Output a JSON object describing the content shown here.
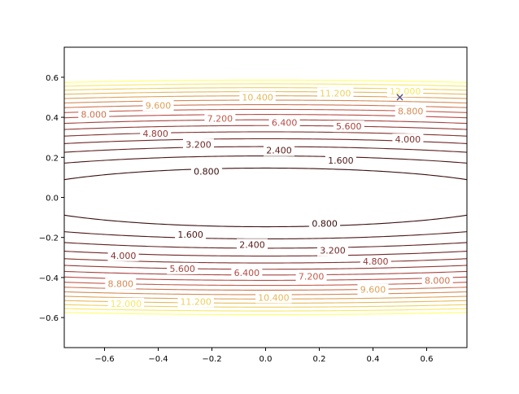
{
  "chart_data": {
    "type": "contour",
    "title": "",
    "xlabel": "",
    "ylabel": "",
    "xlim": [
      -0.75,
      0.75
    ],
    "ylim": [
      -0.75,
      0.75
    ],
    "x_ticks": [
      "−0.6",
      "−0.4",
      "−0.2",
      "0.0",
      "0.2",
      "0.4",
      "0.6"
    ],
    "y_ticks": [
      "−0.6",
      "−0.4",
      "−0.2",
      "0.0",
      "0.2",
      "0.4",
      "0.6"
    ],
    "levels": [
      0.8,
      1.6,
      2.4,
      3.2,
      4.0,
      4.8,
      5.6,
      6.4,
      7.2,
      8.0,
      8.8,
      9.6,
      10.4,
      11.2,
      12.0,
      12.8
    ],
    "level_labels": [
      {
        "text": "0.800",
        "x": -0.22,
        "y": 0.13
      },
      {
        "text": "1.600",
        "x": 0.28,
        "y": 0.185
      },
      {
        "text": "2.400",
        "x": 0.05,
        "y": 0.235
      },
      {
        "text": "3.200",
        "x": -0.25,
        "y": 0.265
      },
      {
        "text": "4.000",
        "x": 0.53,
        "y": 0.29
      },
      {
        "text": "4.800",
        "x": -0.41,
        "y": 0.32
      },
      {
        "text": "5.600",
        "x": 0.31,
        "y": 0.355
      },
      {
        "text": "6.400",
        "x": 0.07,
        "y": 0.375
      },
      {
        "text": "7.200",
        "x": -0.17,
        "y": 0.395
      },
      {
        "text": "8.000",
        "x": -0.64,
        "y": 0.415
      },
      {
        "text": "8.800",
        "x": 0.54,
        "y": 0.43
      },
      {
        "text": "9.600",
        "x": -0.4,
        "y": 0.46
      },
      {
        "text": "10.400",
        "x": -0.03,
        "y": 0.5
      },
      {
        "text": "11.200",
        "x": 0.26,
        "y": 0.52
      },
      {
        "text": "12.000",
        "x": 0.52,
        "y": 0.53
      },
      {
        "text": "0.800",
        "x": 0.22,
        "y": -0.13
      },
      {
        "text": "1.600",
        "x": -0.28,
        "y": -0.185
      },
      {
        "text": "2.400",
        "x": -0.05,
        "y": -0.235
      },
      {
        "text": "3.200",
        "x": 0.25,
        "y": -0.265
      },
      {
        "text": "4.000",
        "x": -0.53,
        "y": -0.29
      },
      {
        "text": "4.800",
        "x": 0.41,
        "y": -0.32
      },
      {
        "text": "5.600",
        "x": -0.31,
        "y": -0.355
      },
      {
        "text": "6.400",
        "x": -0.07,
        "y": -0.375
      },
      {
        "text": "7.200",
        "x": 0.17,
        "y": -0.395
      },
      {
        "text": "8.000",
        "x": 0.64,
        "y": -0.415
      },
      {
        "text": "8.800",
        "x": -0.54,
        "y": -0.43
      },
      {
        "text": "9.600",
        "x": 0.4,
        "y": -0.46
      },
      {
        "text": "10.400",
        "x": 0.03,
        "y": -0.5
      },
      {
        "text": "11.200",
        "x": -0.26,
        "y": -0.52
      },
      {
        "text": "12.000",
        "x": -0.52,
        "y": -0.53
      }
    ],
    "marker": {
      "x": 0.5,
      "y": 0.5,
      "symbol": "x",
      "color": "#4a4a8a"
    },
    "colormap_low": "#3a0f0f",
    "colormap_mid": "#c0504a",
    "colormap_high": "#ffff66",
    "grid": false,
    "legend": "none"
  }
}
